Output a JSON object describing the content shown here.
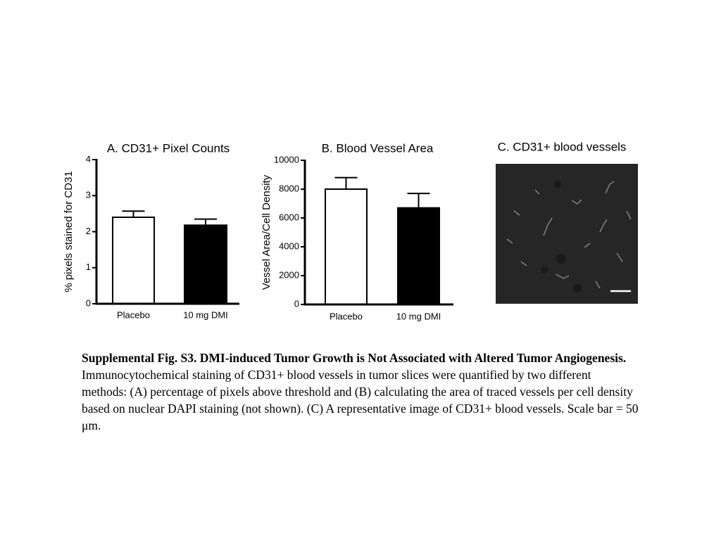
{
  "chart_data": [
    {
      "type": "bar",
      "title": "A. CD31+ Pixel Counts",
      "y_label": "% pixels stained for CD31",
      "categories": [
        "Placebo",
        "10 mg DMI"
      ],
      "values": [
        2.4,
        2.18
      ],
      "errors": [
        0.17,
        0.17
      ],
      "colors": [
        "#ffffff",
        "#000000"
      ],
      "ylim": [
        0,
        4
      ],
      "yticks": [
        0,
        1,
        2,
        3,
        4
      ]
    },
    {
      "type": "bar",
      "title": "B. Blood Vessel Area",
      "y_label": "Vessel Area/Cell Density",
      "categories": [
        "Placebo",
        "10 mg DMI"
      ],
      "values": [
        8000,
        6700
      ],
      "errors": [
        800,
        1000
      ],
      "colors": [
        "#ffffff",
        "#000000"
      ],
      "ylim": [
        0,
        10000
      ],
      "yticks": [
        0,
        2000,
        4000,
        6000,
        8000,
        10000
      ]
    }
  ],
  "panel_c": {
    "title": "C. CD31+ blood vessels"
  },
  "caption": {
    "title": "Supplemental Fig. S3. DMI-induced Tumor Growth is Not Associated with Altered Tumor Angiogenesis.",
    "text": "Immunocytochemical staining of CD31+ blood vessels in tumor slices were quantified by two different methods: (A) percentage of pixels above threshold and (B) calculating the area of traced vessels per cell density based on nuclear DAPI staining (not shown). (C) A representative image of CD31+ blood vessels. Scale bar = 50 μm."
  }
}
